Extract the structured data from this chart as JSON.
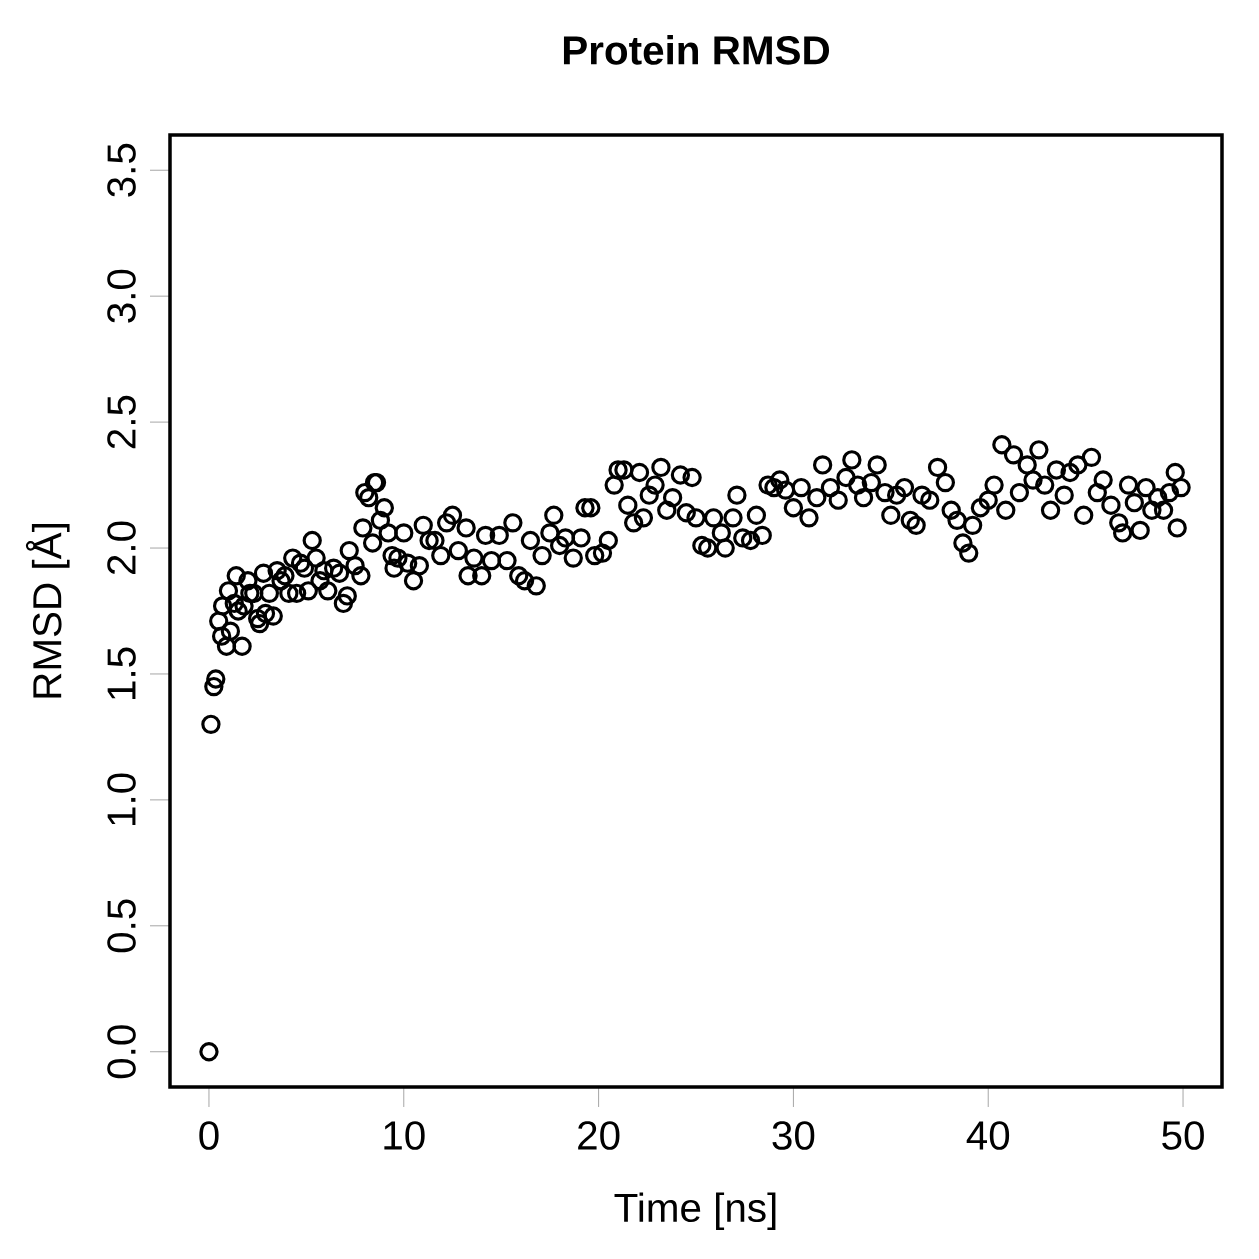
{
  "chart_data": {
    "type": "scatter",
    "title": "Protein RMSD",
    "xlabel": "Time [ns]",
    "ylabel": "RMSD [Å]",
    "xlim": [
      -2,
      52
    ],
    "ylim": [
      -0.14,
      3.64
    ],
    "xticks": [
      0,
      10,
      20,
      30,
      40,
      50
    ],
    "yticks": [
      {
        "value": 0,
        "label": "0.0"
      },
      {
        "value": 0.5,
        "label": "0.5"
      },
      {
        "value": 1,
        "label": "1.0"
      },
      {
        "value": 1.5,
        "label": "1.5"
      },
      {
        "value": 2,
        "label": "2.0"
      },
      {
        "value": 2.5,
        "label": "2.5"
      },
      {
        "value": 3,
        "label": "3.0"
      },
      {
        "value": 3.5,
        "label": "3.5"
      }
    ],
    "marker": "circle",
    "grid": false,
    "series": [
      {
        "color": "#000000",
        "x": [
          0,
          0.1,
          0.25,
          0.35,
          0.5,
          0.65,
          0.7,
          0.9,
          1.0,
          1.1,
          1.3,
          1.4,
          1.5,
          1.7,
          1.8,
          2.0,
          2.1,
          2.3,
          2.5,
          2.6,
          2.8,
          2.9,
          3.1,
          3.3,
          3.5,
          3.7,
          3.9,
          4.1,
          4.3,
          4.5,
          4.7,
          4.9,
          5.1,
          5.3,
          5.5,
          5.7,
          5.9,
          6.1,
          6.4,
          6.7,
          6.9,
          7.1,
          7.2,
          7.5,
          7.8,
          7.9,
          8.0,
          8.2,
          8.4,
          8.5,
          8.6,
          8.8,
          9.0,
          9.2,
          9.4,
          9.5,
          9.7,
          10.0,
          10.2,
          10.5,
          10.8,
          11.0,
          11.3,
          11.6,
          11.9,
          12.2,
          12.5,
          12.8,
          13.2,
          13.3,
          13.6,
          14.0,
          14.2,
          14.5,
          14.9,
          15.3,
          15.6,
          15.9,
          16.2,
          16.5,
          16.8,
          17.1,
          17.5,
          17.7,
          18.0,
          18.3,
          18.7,
          19.1,
          19.3,
          19.6,
          19.8,
          20.2,
          20.5,
          20.8,
          21.0,
          21.3,
          21.5,
          21.8,
          22.1,
          22.3,
          22.6,
          22.9,
          23.2,
          23.5,
          23.8,
          24.2,
          24.5,
          24.8,
          25.0,
          25.3,
          25.6,
          25.9,
          26.3,
          26.5,
          26.9,
          27.1,
          27.4,
          27.8,
          28.1,
          28.4,
          28.7,
          29.0,
          29.3,
          29.6,
          30.0,
          30.4,
          30.8,
          31.2,
          31.5,
          31.9,
          32.3,
          32.7,
          33.0,
          33.3,
          33.6,
          34.0,
          34.3,
          34.7,
          35.0,
          35.3,
          35.7,
          36.0,
          36.3,
          36.6,
          37.0,
          37.4,
          37.8,
          38.1,
          38.4,
          38.7,
          39.0,
          39.2,
          39.6,
          40.0,
          40.3,
          40.7,
          40.9,
          41.3,
          41.6,
          42.0,
          42.3,
          42.6,
          42.9,
          43.2,
          43.5,
          43.9,
          44.2,
          44.6,
          44.9,
          45.3,
          45.6,
          45.9,
          46.3,
          46.7,
          46.9,
          47.2,
          47.5,
          47.8,
          48.1,
          48.4,
          48.7,
          49.0,
          49.3,
          49.6,
          49.7,
          49.9
        ],
        "values": [
          0,
          1.3,
          1.45,
          1.48,
          1.71,
          1.65,
          1.77,
          1.61,
          1.83,
          1.67,
          1.78,
          1.89,
          1.75,
          1.61,
          1.77,
          1.87,
          1.82,
          1.82,
          1.72,
          1.7,
          1.9,
          1.74,
          1.82,
          1.73,
          1.91,
          1.87,
          1.89,
          1.82,
          1.96,
          1.82,
          1.94,
          1.92,
          1.83,
          2.03,
          1.96,
          1.87,
          1.91,
          1.83,
          1.92,
          1.9,
          1.78,
          1.81,
          1.99,
          1.93,
          1.89,
          2.08,
          2.22,
          2.2,
          2.02,
          2.26,
          2.26,
          2.11,
          2.16,
          2.06,
          1.97,
          1.92,
          1.96,
          2.06,
          1.94,
          1.87,
          1.93,
          2.09,
          2.03,
          2.03,
          1.97,
          2.1,
          2.13,
          1.99,
          2.08,
          1.89,
          1.96,
          1.89,
          2.05,
          1.95,
          2.05,
          1.95,
          2.1,
          1.89,
          1.87,
          2.03,
          1.85,
          1.97,
          2.06,
          2.13,
          2.01,
          2.04,
          1.96,
          2.04,
          2.16,
          2.16,
          1.97,
          1.98,
          2.03,
          2.25,
          2.31,
          2.31,
          2.17,
          2.1,
          2.3,
          2.12,
          2.21,
          2.25,
          2.32,
          2.15,
          2.2,
          2.29,
          2.14,
          2.28,
          2.12,
          2.01,
          2.0,
          2.12,
          2.06,
          2.0,
          2.12,
          2.21,
          2.04,
          2.03,
          2.13,
          2.05,
          2.25,
          2.24,
          2.27,
          2.23,
          2.16,
          2.24,
          2.12,
          2.2,
          2.33,
          2.24,
          2.19,
          2.28,
          2.35,
          2.25,
          2.2,
          2.26,
          2.33,
          2.22,
          2.13,
          2.21,
          2.24,
          2.11,
          2.09,
          2.21,
          2.19,
          2.32,
          2.26,
          2.15,
          2.11,
          2.02,
          1.98,
          2.09,
          2.16,
          2.19,
          2.25,
          2.41,
          2.15,
          2.37,
          2.22,
          2.33,
          2.27,
          2.39,
          2.25,
          2.15,
          2.31,
          2.21,
          2.3,
          2.33,
          2.13,
          2.36,
          2.22,
          2.27,
          2.17,
          2.1,
          2.06,
          2.25,
          2.18,
          2.07,
          2.24,
          2.15,
          2.2,
          2.15,
          2.22,
          2.3,
          2.08,
          2.24
        ]
      }
    ]
  }
}
